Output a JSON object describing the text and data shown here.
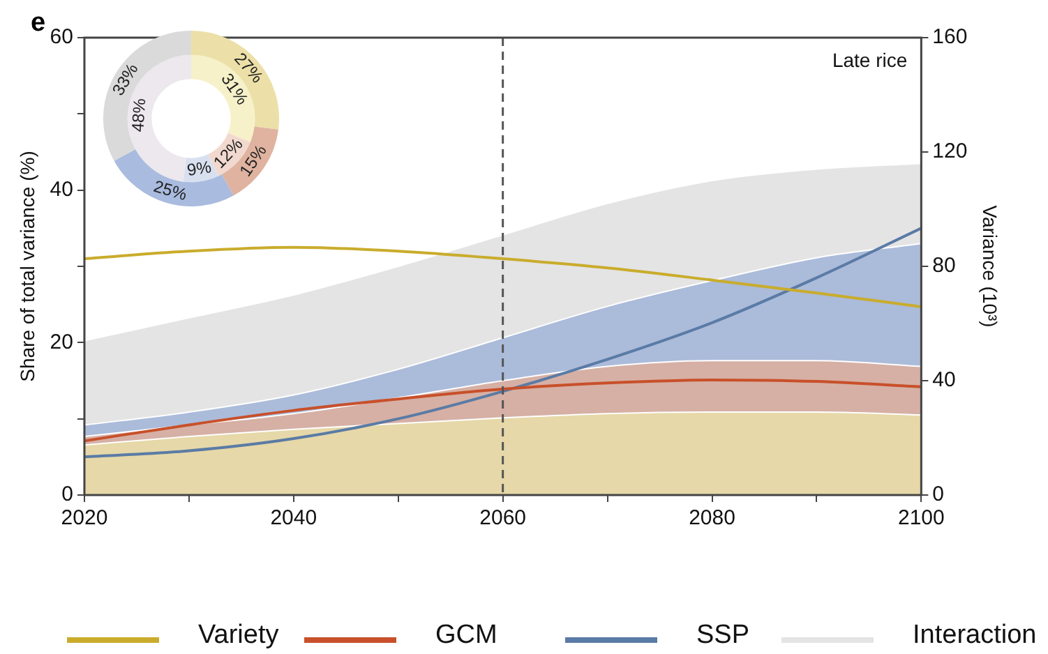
{
  "chart_data": [
    {
      "type": "line",
      "title": "e",
      "xlabel": null,
      "ylabel": "Share of total variance (%)",
      "y2label": "Variance (10³)",
      "annotations": [
        "Late rice"
      ],
      "x": [
        2020,
        2030,
        2040,
        2050,
        2060,
        2070,
        2080,
        2090,
        2100
      ],
      "xlim": [
        2020,
        2100
      ],
      "xticks": [
        2020,
        {
          "value": 2030,
          "label": null
        },
        2040,
        {
          "value": 2050,
          "label": null
        },
        2060,
        {
          "value": 2070,
          "label": null
        },
        2080,
        {
          "value": 2090,
          "label": null
        },
        2100
      ],
      "ylim": [
        0,
        60
      ],
      "yticks": [
        0,
        {
          "value": 10,
          "label": null
        },
        20,
        {
          "value": 30,
          "label": null
        },
        40,
        {
          "value": 50,
          "label": null
        },
        60
      ],
      "y2lim": [
        0,
        160
      ],
      "y2ticks": [
        0,
        40,
        80,
        120,
        160
      ],
      "stacked": true,
      "grid": false,
      "legend": "bottom",
      "ref_lines": [
        {
          "axis": "x",
          "value": 2060,
          "color": "#555555",
          "line_style": "dashed"
        }
      ],
      "series": [
        {
          "type": "area",
          "axis": "y2",
          "color": "#e6d8a8",
          "values": [
            17.5,
            20.5,
            23,
            25,
            27,
            28.5,
            29,
            29,
            28
          ]
        },
        {
          "type": "area",
          "axis": "y2",
          "color": "#d6b0a5",
          "values": [
            3,
            4,
            5.5,
            9,
            13,
            16.5,
            18,
            18,
            17
          ]
        },
        {
          "type": "area",
          "axis": "y2",
          "color": "#abbbda",
          "values": [
            4,
            4.5,
            6.5,
            10,
            15,
            21,
            28,
            36,
            43
          ]
        },
        {
          "type": "area",
          "axis": "y2",
          "name": "Interaction",
          "color": "#e4e4e4",
          "values": [
            29.5,
            33,
            35,
            36,
            36,
            36,
            35,
            31,
            28
          ]
        },
        {
          "type": "line",
          "name": "Variety",
          "color": "#c9ac2c",
          "values": [
            31,
            32,
            32.5,
            32,
            31,
            29.8,
            28.2,
            26.5,
            24.7
          ]
        },
        {
          "type": "line",
          "name": "GCM",
          "color": "#c8502a",
          "values": [
            7.1,
            9.2,
            11.1,
            12.6,
            13.9,
            14.7,
            15.1,
            14.9,
            14.2
          ]
        },
        {
          "type": "line",
          "name": "SSP",
          "color": "#5a7ba5",
          "values": [
            5,
            5.8,
            7.4,
            10,
            13.6,
            17.8,
            22.6,
            28.5,
            35
          ]
        }
      ]
    },
    {
      "type": "donut",
      "categories": [
        null,
        null,
        null,
        null
      ],
      "series": [
        {
          "colors": [
            "#ece0a8",
            "#dfb3a0",
            "#a9bbde",
            "#dadada"
          ],
          "values": [
            27,
            15,
            25,
            33
          ],
          "value_labels": [
            "27%",
            "15%",
            "25%",
            "33%"
          ]
        },
        {
          "colors": [
            "#f6f1c8",
            "#f2d9cf",
            "#d8e0f0",
            "#ece8ee"
          ],
          "values": [
            31,
            12,
            9,
            48
          ],
          "value_labels": [
            "31%",
            "12%",
            "9%",
            "48%"
          ]
        }
      ]
    }
  ]
}
